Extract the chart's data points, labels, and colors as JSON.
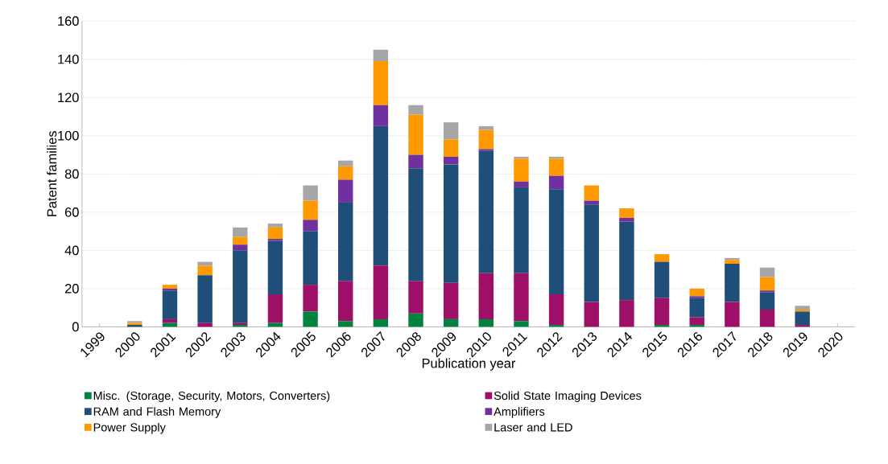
{
  "chart_data": {
    "type": "bar",
    "stacked": true,
    "xlabel": "Publication year",
    "ylabel": "Patent families",
    "categories": [
      "1999",
      "2000",
      "2001",
      "2002",
      "2003",
      "2004",
      "2005",
      "2006",
      "2007",
      "2008",
      "2009",
      "2010",
      "2011",
      "2012",
      "2013",
      "2014",
      "2015",
      "2016",
      "2017",
      "2018",
      "2019",
      "2020"
    ],
    "series": [
      {
        "name": "Misc. (Storage, Security, Motors, Converters)",
        "color": "#00843d",
        "values": [
          0,
          0,
          2,
          0,
          1,
          2,
          8,
          3,
          4,
          7,
          4,
          4,
          3,
          1,
          0,
          0,
          1,
          1,
          0,
          0,
          0,
          0
        ]
      },
      {
        "name": "Solid State Imaging Devices",
        "color": "#9e1068",
        "values": [
          0,
          0,
          2,
          2,
          1,
          15,
          14,
          21,
          28,
          17,
          19,
          24,
          25,
          16,
          13,
          14,
          14,
          4,
          13,
          9,
          1,
          0
        ]
      },
      {
        "name": "RAM and Flash Memory",
        "color": "#1f4e79",
        "values": [
          0,
          1,
          15,
          25,
          38,
          28,
          28,
          41,
          73,
          59,
          62,
          64,
          45,
          55,
          51,
          41,
          19,
          10,
          20,
          9,
          7,
          0
        ]
      },
      {
        "name": "Amplifiers",
        "color": "#7030a0",
        "values": [
          0,
          0,
          1,
          0,
          3,
          1,
          6,
          12,
          11,
          7,
          4,
          1,
          3,
          7,
          2,
          2,
          0,
          1,
          0,
          1,
          0,
          0
        ]
      },
      {
        "name": "Power Supply",
        "color": "#ff9900",
        "values": [
          0,
          1,
          2,
          5,
          4,
          6,
          10,
          7,
          23,
          21,
          9,
          10,
          12,
          9,
          8,
          5,
          4,
          4,
          2,
          7,
          1,
          0
        ]
      },
      {
        "name": "Laser and LED",
        "color": "#a6a6a6",
        "values": [
          0,
          1,
          0,
          2,
          5,
          2,
          8,
          3,
          6,
          5,
          9,
          2,
          1,
          1,
          0,
          0,
          0,
          0,
          1,
          5,
          2,
          0
        ]
      }
    ],
    "ylim": [
      0,
      160
    ],
    "yticks": [
      0,
      20,
      40,
      60,
      80,
      100,
      120,
      140,
      160
    ],
    "grid": "y",
    "legend": "bottom"
  }
}
